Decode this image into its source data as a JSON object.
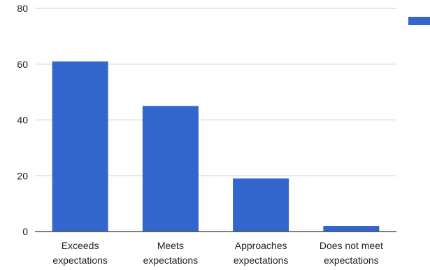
{
  "chart_data": {
    "type": "bar",
    "categories": [
      [
        "Exceeds",
        "expectations"
      ],
      [
        "Meets",
        "expectations"
      ],
      [
        "Approaches",
        "expectations"
      ],
      [
        "Does not meet",
        "expectations"
      ]
    ],
    "series": [
      {
        "values": [
          61,
          45,
          19,
          2
        ],
        "color": "#3366cc"
      }
    ],
    "title": "",
    "xlabel": "",
    "ylabel": "",
    "ylim": [
      0,
      80
    ],
    "yticks": [
      0,
      20,
      40,
      60,
      80
    ],
    "grid": true,
    "legend": "top-right",
    "colors": {
      "bar": "#3366cc",
      "grid": "#cccccc",
      "axis": "#333333",
      "text": "#222222"
    }
  }
}
